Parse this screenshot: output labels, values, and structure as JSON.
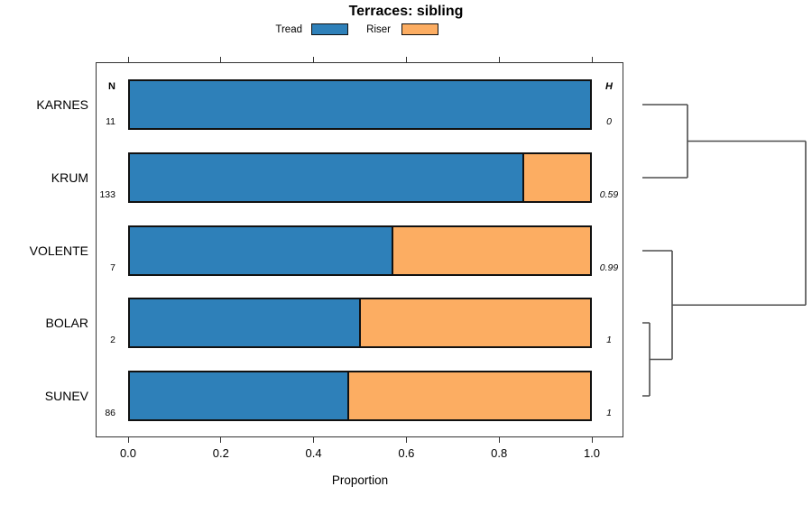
{
  "title": "Terraces: sibling",
  "legend": [
    {
      "label": "Tread",
      "color": "#2E80B9"
    },
    {
      "label": "Riser",
      "color": "#FCAD62"
    }
  ],
  "columns": {
    "n_header": "N",
    "h_header": "H"
  },
  "chart_data": {
    "type": "bar",
    "orientation": "horizontal",
    "stacked": true,
    "title": "Terraces: sibling",
    "xlabel": "Proportion",
    "xlim": [
      0,
      1
    ],
    "xticks": [
      "0.0",
      "0.2",
      "0.4",
      "0.6",
      "0.8",
      "1.0"
    ],
    "xtick_values": [
      0,
      0.2,
      0.4,
      0.6,
      0.8,
      1.0
    ],
    "categories": [
      "KARNES",
      "KRUM",
      "VOLENTE",
      "BOLAR",
      "SUNEV"
    ],
    "series": [
      {
        "name": "Tread",
        "color": "#2E80B9",
        "values": [
          1.0,
          0.855,
          0.571,
          0.5,
          0.475
        ]
      },
      {
        "name": "Riser",
        "color": "#FCAD62",
        "values": [
          0.0,
          0.145,
          0.429,
          0.5,
          0.525
        ]
      }
    ],
    "n_values": [
      "11",
      "133",
      "7",
      "2",
      "86"
    ],
    "h_values": [
      "0",
      "0.59",
      "0.99",
      "1",
      "1"
    ],
    "legend_position": "top",
    "grid": false,
    "dendrogram": {
      "side": "right",
      "merges": [
        {
          "order": 1,
          "members": [
            "BOLAR",
            "SUNEV"
          ]
        },
        {
          "order": 2,
          "members": [
            "VOLENTE",
            "BOLAR+SUNEV"
          ]
        },
        {
          "order": 3,
          "members": [
            "KARNES",
            "KRUM"
          ]
        },
        {
          "order": 4,
          "members": [
            "KARNES+KRUM",
            "VOLENTE+BOLAR+SUNEV"
          ]
        }
      ]
    }
  }
}
